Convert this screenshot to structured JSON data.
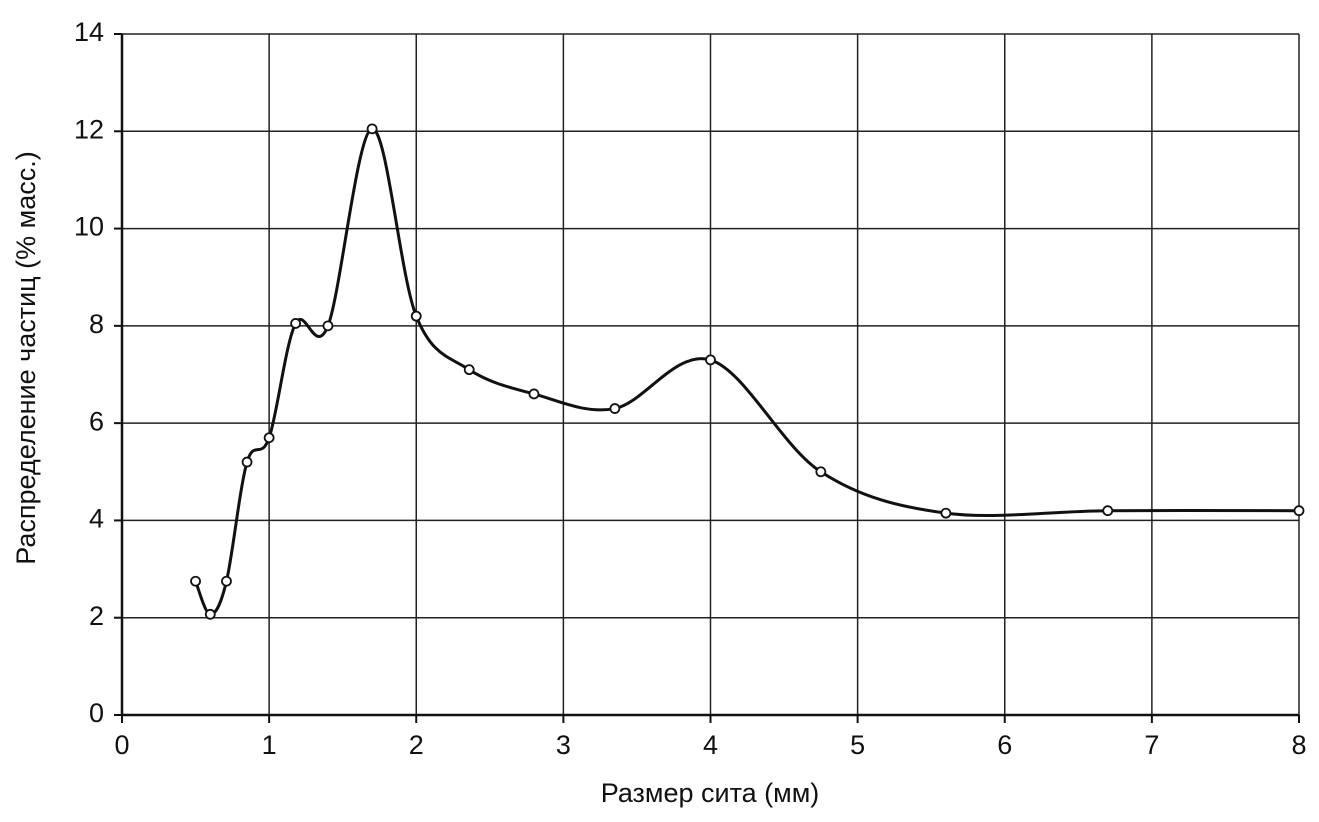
{
  "chart_data": {
    "type": "line",
    "x_label": "Размер сита (мм)",
    "y_label": "Распределение частиц (% масс.)",
    "series": [
      {
        "color": "#111111",
        "x": [
          0.5,
          0.6,
          0.71,
          0.85,
          1.0,
          1.18,
          1.4,
          1.7,
          2.0,
          2.36,
          2.8,
          3.35,
          4.0,
          4.75,
          5.6,
          6.7,
          8.0
        ],
        "values": [
          2.75,
          2.07,
          2.75,
          5.2,
          5.7,
          8.05,
          8.0,
          12.05,
          8.2,
          7.1,
          6.6,
          6.3,
          7.3,
          5.0,
          4.15,
          4.2,
          4.2
        ]
      }
    ],
    "xlim": [
      0,
      8
    ],
    "xticks": [
      0,
      1,
      2,
      3,
      4,
      5,
      6,
      7,
      8
    ],
    "ylim": [
      0,
      14
    ],
    "yticks": [
      0,
      2,
      4,
      6,
      8,
      10,
      12,
      14
    ],
    "grid": true,
    "markers": true
  }
}
